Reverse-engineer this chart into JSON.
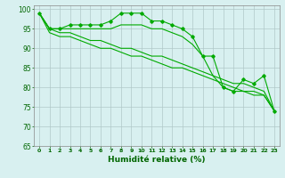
{
  "x": [
    0,
    1,
    2,
    3,
    4,
    5,
    6,
    7,
    8,
    9,
    10,
    11,
    12,
    13,
    14,
    15,
    16,
    17,
    18,
    19,
    20,
    21,
    22,
    23
  ],
  "line1": [
    99,
    95,
    95,
    96,
    96,
    96,
    96,
    97,
    99,
    99,
    99,
    97,
    97,
    96,
    95,
    93,
    88,
    88,
    80,
    79,
    82,
    81,
    83,
    74
  ],
  "line2": [
    99,
    95,
    95,
    95,
    95,
    95,
    95,
    95,
    96,
    96,
    96,
    95,
    95,
    94,
    93,
    91,
    88,
    83,
    80,
    79,
    79,
    79,
    78,
    74
  ],
  "line3": [
    99,
    95,
    94,
    94,
    93,
    92,
    92,
    91,
    90,
    90,
    89,
    88,
    88,
    87,
    86,
    85,
    84,
    83,
    82,
    81,
    81,
    80,
    79,
    74
  ],
  "line4": [
    99,
    94,
    93,
    93,
    92,
    91,
    90,
    90,
    89,
    88,
    88,
    87,
    86,
    85,
    85,
    84,
    83,
    82,
    81,
    80,
    79,
    78,
    78,
    74
  ],
  "line_color": "#00aa00",
  "bg_color": "#d8f0f0",
  "grid_color": "#b0c8c8",
  "xlabel": "Humidité relative (%)",
  "ylim": [
    65,
    101
  ],
  "xlim": [
    -0.5,
    23.5
  ],
  "yticks": [
    65,
    70,
    75,
    80,
    85,
    90,
    95,
    100
  ],
  "xticks": [
    0,
    1,
    2,
    3,
    4,
    5,
    6,
    7,
    8,
    9,
    10,
    11,
    12,
    13,
    14,
    15,
    16,
    17,
    18,
    19,
    20,
    21,
    22,
    23
  ]
}
